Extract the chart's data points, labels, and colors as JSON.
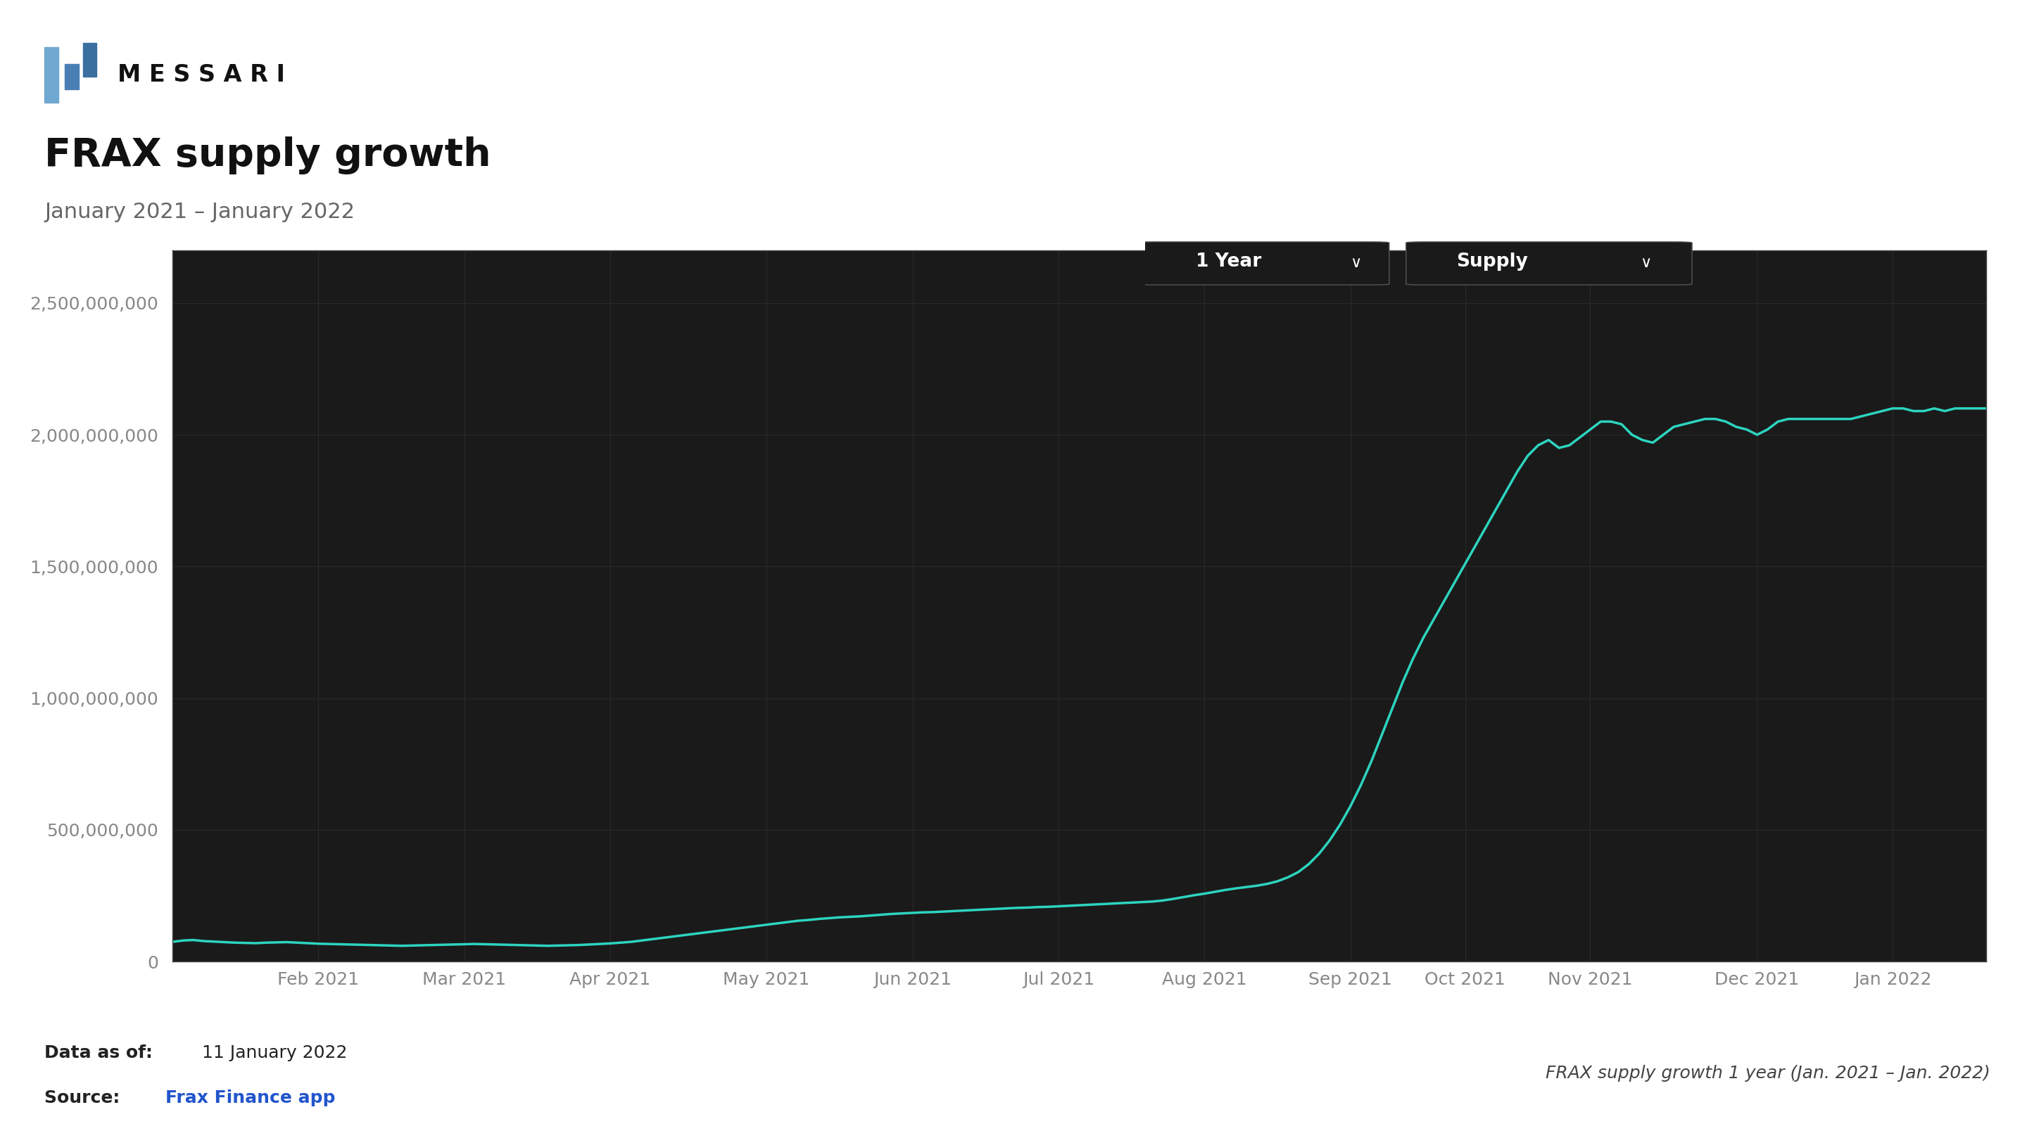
{
  "title": "FRAX supply growth",
  "subtitle": "January 2021 – January 2022",
  "plot_bg_color": "#1a1a1a",
  "outer_bg_color": "#ffffff",
  "line_color": "#2dd4bf",
  "tick_color": "#888888",
  "grid_color": "#2a2a2a",
  "title_color": "#111111",
  "subtitle_color": "#666666",
  "ylim": [
    0,
    2700000000
  ],
  "yticks": [
    0,
    500000000,
    1000000000,
    1500000000,
    2000000000,
    2500000000
  ],
  "xtick_labels": [
    "Feb 2021",
    "Mar 2021",
    "Apr 2021",
    "May 2021",
    "Jun 2021",
    "Jul 2021",
    "Aug 2021",
    "Sep 2021",
    "Oct 2021",
    "Nov 2021",
    "Dec 2021",
    "Jan 2022"
  ],
  "data_as_of_bold": "Data as of:",
  "data_as_of_normal": "  11 January 2022",
  "source_bold": "Source: ",
  "source_link_text": "Frax Finance app",
  "source_link_color": "#2255cc",
  "right_label": "FRAX supply growth 1 year (Jan. 2021 – Jan. 2022)",
  "dropdown1_text": "1 Year",
  "dropdown2_text": "Supply",
  "messari_text": "M E S S A R I",
  "x_values": [
    0,
    1,
    2,
    3,
    4,
    5,
    6,
    7,
    8,
    9,
    10,
    11,
    12,
    13,
    14,
    15,
    16,
    17,
    18,
    19,
    20,
    21,
    22,
    23,
    24,
    25,
    26,
    27,
    28,
    29,
    30,
    31,
    32,
    33,
    34,
    35,
    36,
    37,
    38,
    39,
    40,
    41,
    42,
    43,
    44,
    45,
    46,
    47,
    48,
    49,
    50,
    51,
    52,
    53,
    54,
    55,
    56,
    57,
    58,
    59,
    60,
    61,
    62,
    63,
    64,
    65,
    66,
    67,
    68,
    69,
    70,
    71,
    72,
    73,
    74,
    75,
    76,
    77,
    78,
    79,
    80,
    81,
    82,
    83,
    84,
    85,
    86,
    87,
    88,
    89,
    90,
    91,
    92,
    93,
    94,
    95,
    96,
    97,
    98,
    99,
    100,
    101,
    102,
    103,
    104,
    105,
    106,
    107,
    108,
    109,
    110,
    111,
    112,
    113,
    114,
    115,
    116,
    117,
    118,
    119,
    120,
    121,
    122,
    123,
    124,
    125,
    126,
    127,
    128,
    129,
    130,
    131,
    132,
    133,
    134,
    135,
    136,
    137,
    138,
    139,
    140,
    141,
    142,
    143,
    144,
    145,
    146,
    147,
    148,
    149,
    150,
    151,
    152,
    153,
    154,
    155,
    156,
    157,
    158,
    159,
    160,
    161,
    162,
    163,
    164,
    165,
    166,
    167,
    168,
    169,
    170,
    171,
    172,
    173,
    174
  ],
  "y_values": [
    75000000,
    80000000,
    82000000,
    78000000,
    76000000,
    74000000,
    72000000,
    71000000,
    70000000,
    72000000,
    73000000,
    74000000,
    72000000,
    70000000,
    68000000,
    67000000,
    66000000,
    65000000,
    64000000,
    63000000,
    62000000,
    61000000,
    60000000,
    61000000,
    62000000,
    63000000,
    64000000,
    65000000,
    66000000,
    67000000,
    66000000,
    65000000,
    64000000,
    63000000,
    62000000,
    61000000,
    60000000,
    61000000,
    62000000,
    63000000,
    65000000,
    67000000,
    69000000,
    72000000,
    75000000,
    80000000,
    85000000,
    90000000,
    95000000,
    100000000,
    105000000,
    110000000,
    115000000,
    120000000,
    125000000,
    130000000,
    135000000,
    140000000,
    145000000,
    150000000,
    155000000,
    158000000,
    162000000,
    165000000,
    168000000,
    170000000,
    172000000,
    175000000,
    178000000,
    181000000,
    183000000,
    185000000,
    187000000,
    188000000,
    190000000,
    192000000,
    194000000,
    196000000,
    198000000,
    200000000,
    202000000,
    204000000,
    205000000,
    207000000,
    208000000,
    210000000,
    212000000,
    214000000,
    216000000,
    218000000,
    220000000,
    222000000,
    224000000,
    226000000,
    228000000,
    232000000,
    238000000,
    245000000,
    252000000,
    258000000,
    265000000,
    272000000,
    278000000,
    283000000,
    288000000,
    295000000,
    305000000,
    320000000,
    340000000,
    370000000,
    410000000,
    460000000,
    520000000,
    590000000,
    670000000,
    760000000,
    860000000,
    960000000,
    1060000000,
    1150000000,
    1230000000,
    1300000000,
    1370000000,
    1440000000,
    1510000000,
    1580000000,
    1650000000,
    1720000000,
    1790000000,
    1860000000,
    1920000000,
    1960000000,
    1980000000,
    1950000000,
    1960000000,
    1990000000,
    2020000000,
    2050000000,
    2050000000,
    2040000000,
    2000000000,
    1980000000,
    1970000000,
    2000000000,
    2030000000,
    2040000000,
    2050000000,
    2060000000,
    2060000000,
    2050000000,
    2030000000,
    2020000000,
    2000000000,
    2020000000,
    2050000000,
    2060000000,
    2060000000,
    2060000000,
    2060000000,
    2060000000,
    2060000000,
    2060000000,
    2070000000,
    2080000000,
    2090000000,
    2100000000,
    2100000000,
    2090000000,
    2090000000,
    2100000000,
    2090000000,
    2100000000,
    2100000000,
    2100000000,
    2100000000
  ],
  "xtick_positions": [
    14,
    28,
    42,
    57,
    71,
    85,
    99,
    113,
    124,
    136,
    152,
    165
  ]
}
